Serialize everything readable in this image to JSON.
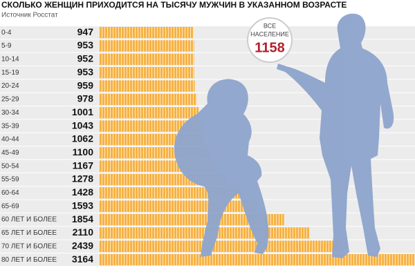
{
  "chart_data": {
    "type": "bar",
    "title": "СКОЛЬКО ЖЕНЩИН ПРИХОДИТСЯ НА ТЫСЯЧУ МУЖЧИН В УКАЗАННОМ ВОЗРАСТЕ",
    "subtitle": "Источник Росстат",
    "categories": [
      "0-4",
      "5-9",
      "10-14",
      "15-19",
      "20-24",
      "25-29",
      "30-34",
      "35-39",
      "40-44",
      "45-49",
      "50-54",
      "55-59",
      "60-64",
      "65-69",
      "60 ЛЕТ И БОЛЕЕ",
      "65 ЛЕТ И БОЛЕЕ",
      "70 ЛЕТ И БОЛЕЕ",
      "80 ЛЕТ И БОЛЕЕ"
    ],
    "values": [
      947,
      953,
      952,
      953,
      959,
      978,
      1001,
      1043,
      1062,
      1100,
      1167,
      1278,
      1428,
      1593,
      1854,
      2110,
      2439,
      3164
    ],
    "color": "#f5a623",
    "xlim": [
      0,
      3164
    ],
    "callout": {
      "line1": "ВСЕ",
      "line2": "НАСЕЛЕНИЕ",
      "value": 1158
    }
  }
}
